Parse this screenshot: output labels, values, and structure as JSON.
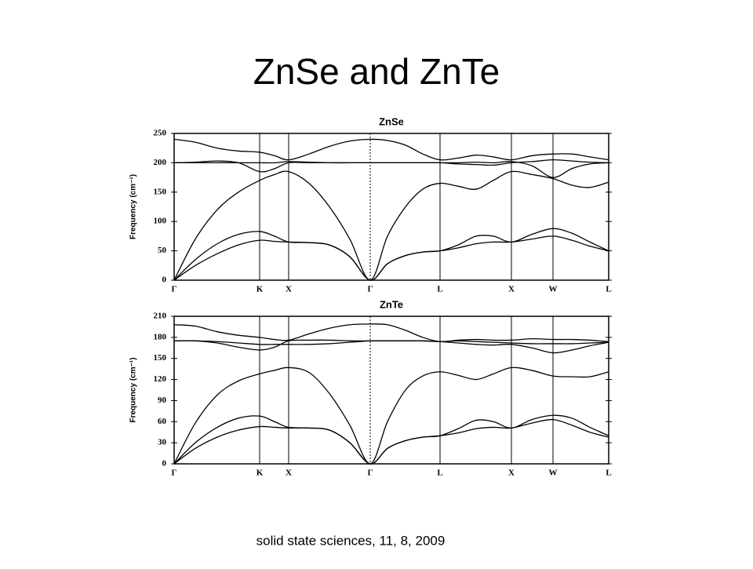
{
  "title": "ZnSe and ZnTe",
  "footer": "solid state sciences, 11, 8, 2009",
  "chart_data": [
    {
      "type": "line",
      "title": "ZnSe",
      "y_label": "Frequency (cm⁻¹)",
      "color": "#000000",
      "x": [
        0,
        27,
        55,
        82,
        109,
        128,
        146,
        172,
        198,
        224,
        250,
        272,
        295,
        317,
        339,
        362,
        385,
        407,
        430,
        456,
        483,
        507,
        530,
        554
      ],
      "xlim": [
        0,
        554
      ],
      "xticks": [
        {
          "value": 0,
          "label": "Γ"
        },
        {
          "value": 109,
          "label": "K"
        },
        {
          "value": 146,
          "label": "X"
        },
        {
          "value": 250,
          "label": "Γ"
        },
        {
          "value": 339,
          "label": "L"
        },
        {
          "value": 430,
          "label": "X"
        },
        {
          "value": 483,
          "label": "W"
        },
        {
          "value": 554,
          "label": "L"
        }
      ],
      "ylim": [
        0,
        250
      ],
      "yticks": [
        0,
        50,
        100,
        150,
        200,
        250
      ],
      "series": [
        {
          "values": [
            0,
            25,
            45,
            60,
            68,
            66,
            65,
            64,
            60,
            40,
            0,
            28,
            42,
            48,
            50,
            55,
            62,
            65,
            65,
            70,
            75,
            68,
            58,
            50
          ]
        },
        {
          "values": [
            0,
            35,
            62,
            78,
            83,
            75,
            65,
            64,
            60,
            40,
            0,
            28,
            42,
            48,
            50,
            60,
            75,
            75,
            65,
            78,
            88,
            80,
            65,
            50
          ]
        },
        {
          "values": [
            0,
            70,
            120,
            150,
            170,
            180,
            185,
            165,
            125,
            70,
            0,
            75,
            125,
            155,
            165,
            160,
            155,
            170,
            185,
            180,
            173,
            162,
            158,
            167
          ]
        },
        {
          "values": [
            200,
            201,
            203,
            200,
            185,
            190,
            200,
            200,
            200,
            200,
            200,
            200,
            200,
            200,
            200,
            198,
            197,
            196,
            200,
            202,
            205,
            203,
            201,
            200
          ]
        },
        {
          "values": [
            200,
            200,
            200,
            200,
            200,
            200,
            202,
            201,
            200,
            200,
            200,
            200,
            200,
            200,
            200,
            200,
            201,
            200,
            202,
            195,
            175,
            190,
            198,
            200
          ]
        },
        {
          "values": [
            240,
            235,
            225,
            220,
            218,
            212,
            205,
            215,
            228,
            237,
            240,
            238,
            230,
            215,
            205,
            208,
            213,
            210,
            205,
            212,
            215,
            215,
            210,
            205
          ]
        }
      ]
    },
    {
      "type": "line",
      "title": "ZnTe",
      "y_label": "Frequency (cm⁻¹)",
      "color": "#000000",
      "x": [
        0,
        27,
        55,
        82,
        109,
        128,
        146,
        172,
        198,
        224,
        250,
        272,
        295,
        317,
        339,
        362,
        385,
        407,
        430,
        456,
        483,
        507,
        530,
        554
      ],
      "xlim": [
        0,
        554
      ],
      "xticks": [
        {
          "value": 0,
          "label": "Γ"
        },
        {
          "value": 109,
          "label": "K"
        },
        {
          "value": 146,
          "label": "X"
        },
        {
          "value": 250,
          "label": "Γ"
        },
        {
          "value": 339,
          "label": "L"
        },
        {
          "value": 430,
          "label": "X"
        },
        {
          "value": 483,
          "label": "W"
        },
        {
          "value": 554,
          "label": "L"
        }
      ],
      "ylim": [
        0,
        210
      ],
      "yticks": [
        0,
        30,
        60,
        90,
        120,
        150,
        180,
        210
      ],
      "series": [
        {
          "values": [
            0,
            22,
            38,
            48,
            53,
            52,
            51,
            51,
            48,
            30,
            0,
            22,
            33,
            38,
            40,
            44,
            50,
            52,
            51,
            58,
            63,
            55,
            45,
            38
          ]
        },
        {
          "values": [
            0,
            30,
            52,
            65,
            68,
            60,
            52,
            51,
            48,
            30,
            0,
            22,
            33,
            38,
            40,
            50,
            62,
            60,
            51,
            63,
            69,
            65,
            52,
            40
          ]
        },
        {
          "values": [
            0,
            58,
            98,
            118,
            128,
            133,
            137,
            130,
            100,
            55,
            0,
            60,
            105,
            125,
            131,
            126,
            120,
            128,
            137,
            133,
            125,
            124,
            124,
            131
          ]
        },
        {
          "values": [
            175,
            175,
            172,
            166,
            162,
            166,
            175,
            176,
            176,
            175,
            175,
            175,
            175,
            175,
            174,
            172,
            170,
            169,
            170,
            165,
            158,
            162,
            168,
            173
          ]
        },
        {
          "values": [
            175,
            175,
            174,
            172,
            170,
            170,
            170,
            170,
            171,
            173,
            175,
            175,
            175,
            175,
            174,
            175,
            174,
            173,
            172,
            171,
            171,
            171,
            172,
            173
          ]
        },
        {
          "values": [
            198,
            196,
            188,
            183,
            180,
            177,
            176,
            185,
            193,
            198,
            199,
            198,
            190,
            180,
            174,
            176,
            177,
            176,
            176,
            178,
            177,
            177,
            176,
            174
          ]
        }
      ]
    }
  ]
}
